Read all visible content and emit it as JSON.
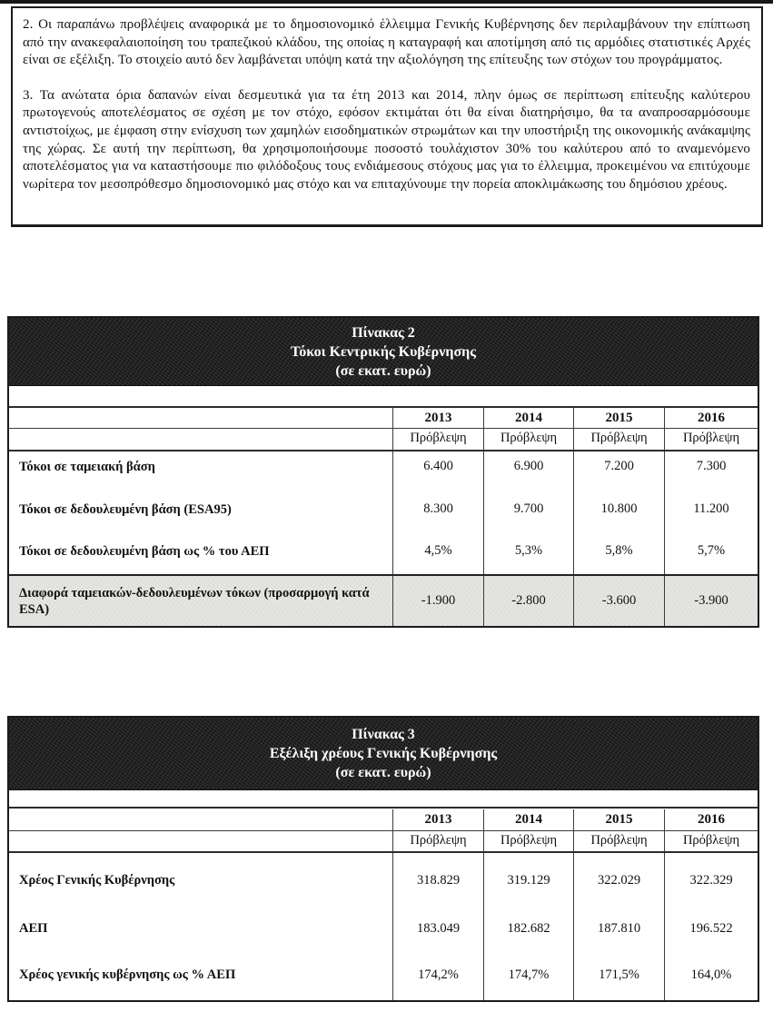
{
  "document": {
    "paragraphs": [
      "2. Οι παραπάνω προβλέψεις αναφορικά με το δημοσιονομικό έλλειμμα Γενικής Κυβέρνησης δεν περιλαμβάνουν την επίπτωση από την ανακεφαλαιοποίηση του τραπεζικού κλάδου, της οποίας η καταγραφή και αποτίμηση από τις αρμόδιες στατιστικές Αρχές είναι σε εξέλιξη. Το στοιχείο αυτό δεν λαμβάνεται υπόψη κατά την αξιολόγηση της επίτευξης των στόχων του προγράμματος.",
      "3. Τα ανώτατα όρια δαπανών είναι δεσμευτικά για τα έτη 2013 και 2014, πλην όμως σε περίπτωση επίτευξης καλύτερου πρωτογενούς αποτελέσματος σε σχέση με τον στόχο, εφόσον εκτιμάται ότι θα είναι διατηρήσιμο, θα τα αναπροσαρμόσουμε αντιστοίχως, με έμφαση στην ενίσχυση των χαμηλών εισοδηματικών στρωμάτων και την υποστήριξη της οικονομικής ανάκαμψης της χώρας. Σε αυτή την περίπτωση, θα χρησιμοποιήσουμε ποσοστό τουλάχιστον 30% του καλύτερου από το αναμενόμενο αποτελέσματος για να καταστήσουμε πιο φιλόδοξους τους ενδιάμεσους στόχους μας για το έλλειμμα, προκειμένου να επιτύχουμε νωρίτερα τον μεσοπρόθεσμο δημοσιονομικό μας στόχο και να επιταχύνουμε την πορεία αποκλιμάκωσης του δημόσιου χρέους."
    ]
  },
  "table2": {
    "title": "Πίνακας 2",
    "subtitle": "Τόκοι Κεντρικής Κυβέρνησης",
    "unit": "(σε εκατ. ευρώ)",
    "col_headers": [
      "2013",
      "2014",
      "2015",
      "2016"
    ],
    "sub_headers": [
      "Πρόβλεψη",
      "Πρόβλεψη",
      "Πρόβλεψη",
      "Πρόβλεψη"
    ],
    "rows": [
      {
        "label": "Τόκοι σε ταμειακή βάση",
        "values": [
          "6.400",
          "6.900",
          "7.200",
          "7.300"
        ]
      },
      {
        "label": "Τόκοι σε δεδουλευμένη βάση (ESA95)",
        "values": [
          "8.300",
          "9.700",
          "10.800",
          "11.200"
        ]
      },
      {
        "label": "Τόκοι σε δεδουλευμένη βάση ως % του ΑΕΠ",
        "values": [
          "4,5%",
          "5,3%",
          "5,8%",
          "5,7%"
        ]
      },
      {
        "label": "Διαφορά ταμειακών-δεδουλευμένων τόκων (προσαρμογή κατά ESA)",
        "values": [
          "-1.900",
          "-2.800",
          "-3.600",
          "-3.900"
        ],
        "shaded": true
      }
    ]
  },
  "table3": {
    "title": "Πίνακας 3",
    "subtitle": "Εξέλιξη χρέους Γενικής Κυβέρνησης",
    "unit": "(σε εκατ. ευρώ)",
    "col_headers": [
      "2013",
      "2014",
      "2015",
      "2016"
    ],
    "sub_headers": [
      "Πρόβλεψη",
      "Πρόβλεψη",
      "Πρόβλεψη",
      "Πρόβλεψη"
    ],
    "rows": [
      {
        "label": "Χρέος Γενικής Κυβέρνησης",
        "values": [
          "318.829",
          "319.129",
          "322.029",
          "322.329"
        ]
      },
      {
        "label": "ΑΕΠ",
        "values": [
          "183.049",
          "182.682",
          "187.810",
          "196.522"
        ]
      },
      {
        "label": "Χρέος γενικής κυβέρνησης ως % ΑΕΠ",
        "values": [
          "174,2%",
          "174,7%",
          "171,5%",
          "164,0%"
        ]
      }
    ]
  },
  "colors": {
    "band_bg": "#191919",
    "band_text": "#ffffff",
    "shaded_row_bg": "#e7e7e4",
    "border": "#1b1b1b",
    "page_bg": "#ffffff"
  }
}
